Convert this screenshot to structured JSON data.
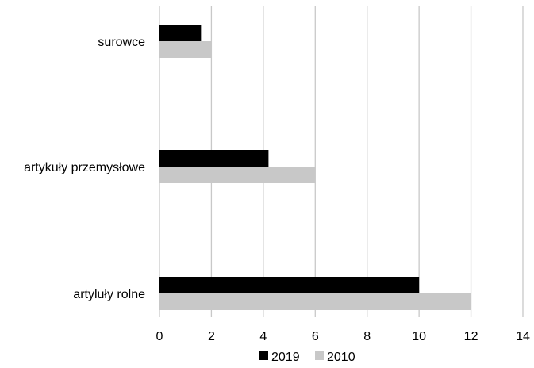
{
  "chart_data": {
    "type": "bar",
    "orientation": "horizontal",
    "categories": [
      "artyluły rolne",
      "artykuły przemysłowe",
      "surowce"
    ],
    "series": [
      {
        "name": "2019",
        "color": "#000000",
        "values": [
          10,
          4.2,
          1.6
        ]
      },
      {
        "name": "2010",
        "color": "#c8c8c8",
        "values": [
          12,
          6,
          2
        ]
      }
    ],
    "x_ticks": [
      "0",
      "2",
      "4",
      "6",
      "8",
      "10",
      "12",
      "14"
    ],
    "xlim": [
      0,
      14
    ],
    "grid": true,
    "gridline_color": "#c8c8c8",
    "legend_position": "bottom",
    "title": "",
    "xlabel": "",
    "ylabel": ""
  }
}
